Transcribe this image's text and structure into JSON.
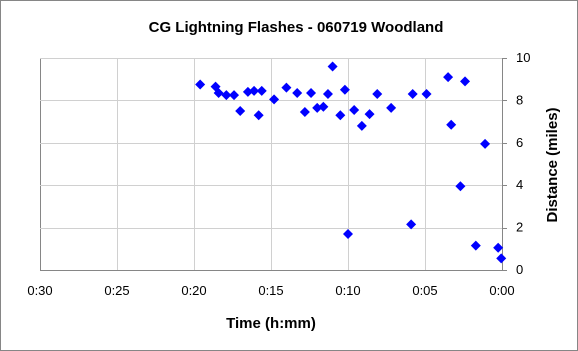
{
  "chart_data": {
    "type": "scatter",
    "title": "CG Lightning Flashes -  060719 Woodland",
    "xlabel": "Time (h:mm)",
    "ylabel": "Distance (miles)",
    "x_unit": "minutes before 0:00",
    "x_reversed": true,
    "xlim": [
      0,
      30
    ],
    "ylim": [
      0,
      10
    ],
    "x_ticks": [
      {
        "value": 30,
        "label": "0:30"
      },
      {
        "value": 25,
        "label": "0:25"
      },
      {
        "value": 20,
        "label": "0:20"
      },
      {
        "value": 15,
        "label": "0:15"
      },
      {
        "value": 10,
        "label": "0:10"
      },
      {
        "value": 5,
        "label": "0:05"
      },
      {
        "value": 0,
        "label": "0:00"
      }
    ],
    "y_ticks": [
      {
        "value": 0,
        "label": "0"
      },
      {
        "value": 2,
        "label": "2"
      },
      {
        "value": 4,
        "label": "4"
      },
      {
        "value": 6,
        "label": "6"
      },
      {
        "value": 8,
        "label": "8"
      },
      {
        "value": 10,
        "label": "10"
      }
    ],
    "grid": true,
    "marker_color": "#0000ff",
    "series": [
      {
        "points": [
          [
            19.6,
            8.75
          ],
          [
            18.6,
            8.65
          ],
          [
            18.4,
            8.35
          ],
          [
            17.9,
            8.25
          ],
          [
            17.4,
            8.25
          ],
          [
            17.0,
            7.5
          ],
          [
            16.5,
            8.4
          ],
          [
            16.1,
            8.45
          ],
          [
            15.8,
            7.3
          ],
          [
            15.6,
            8.45
          ],
          [
            14.8,
            8.05
          ],
          [
            14.0,
            8.6
          ],
          [
            13.3,
            8.35
          ],
          [
            12.8,
            7.45
          ],
          [
            12.4,
            8.35
          ],
          [
            12.0,
            7.65
          ],
          [
            11.6,
            7.7
          ],
          [
            11.3,
            8.3
          ],
          [
            11.0,
            9.6
          ],
          [
            10.5,
            7.3
          ],
          [
            10.2,
            8.5
          ],
          [
            10.0,
            1.7
          ],
          [
            9.6,
            7.55
          ],
          [
            9.1,
            6.8
          ],
          [
            8.6,
            7.35
          ],
          [
            8.1,
            8.3
          ],
          [
            7.2,
            7.65
          ],
          [
            5.9,
            2.15
          ],
          [
            5.8,
            8.3
          ],
          [
            4.9,
            8.3
          ],
          [
            3.5,
            9.1
          ],
          [
            3.3,
            6.85
          ],
          [
            2.7,
            3.95
          ],
          [
            2.4,
            8.9
          ],
          [
            1.7,
            1.15
          ],
          [
            1.1,
            5.95
          ],
          [
            0.25,
            1.05
          ],
          [
            0.05,
            0.55
          ]
        ]
      }
    ]
  }
}
